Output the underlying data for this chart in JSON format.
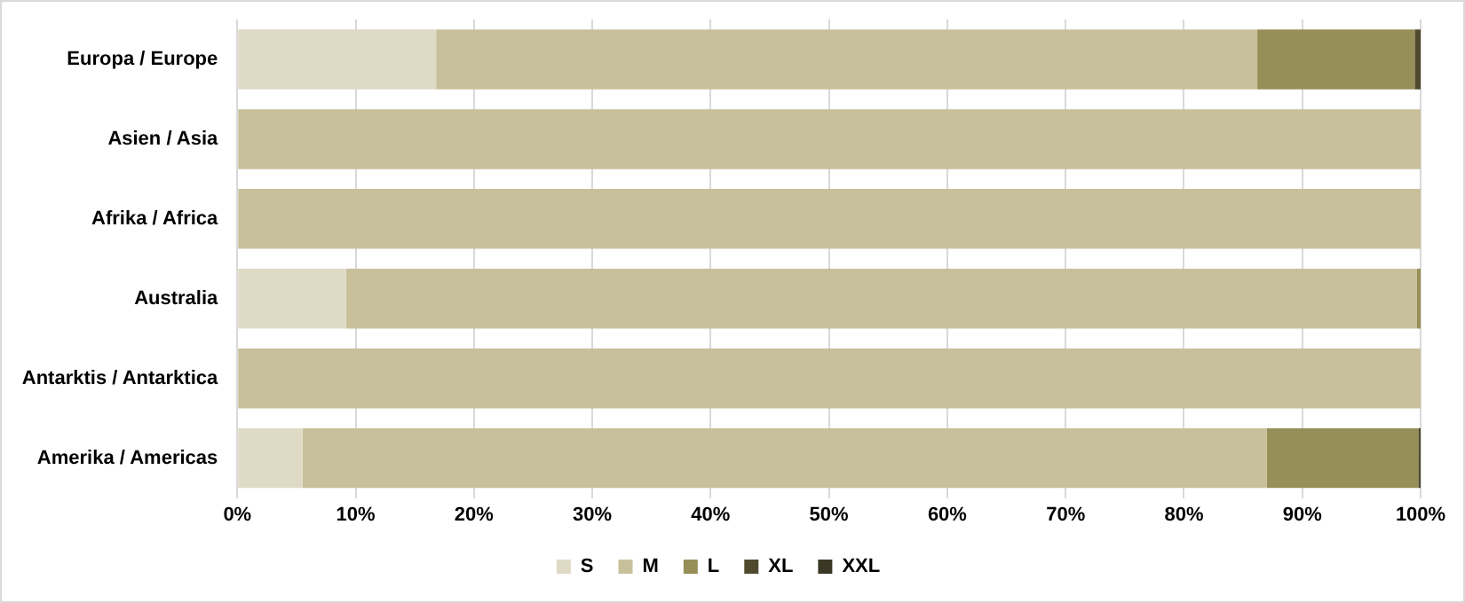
{
  "chart_data": {
    "type": "bar",
    "orientation": "horizontal",
    "stacked": true,
    "categories": [
      "Europa / Europe",
      "Asien / Asia",
      "Afrika / Africa",
      "Australia",
      "Antarktis / Antarktica",
      "Amerika / Americas"
    ],
    "series": [
      {
        "name": "S",
        "color": "#dfdac6",
        "values": [
          16.8,
          0,
          0,
          9.2,
          0,
          5.5
        ]
      },
      {
        "name": "M",
        "color": "#c8c09a",
        "values": [
          69.4,
          100,
          100,
          90.5,
          100,
          81.5
        ]
      },
      {
        "name": "L",
        "color": "#978f58",
        "values": [
          13.3,
          0,
          0,
          0.3,
          0,
          12.8
        ]
      },
      {
        "name": "XL",
        "color": "#4f4a2e",
        "values": [
          0.5,
          0,
          0,
          0,
          0,
          0.2
        ]
      },
      {
        "name": "XXL",
        "color": "#3a3724",
        "values": [
          0,
          0,
          0,
          0,
          0,
          0
        ]
      }
    ],
    "xlim": [
      0,
      100
    ],
    "xticks": [
      {
        "value": 0,
        "label": "0%"
      },
      {
        "value": 10,
        "label": "10%"
      },
      {
        "value": 20,
        "label": "20%"
      },
      {
        "value": 30,
        "label": "30%"
      },
      {
        "value": 40,
        "label": "40%"
      },
      {
        "value": 50,
        "label": "50%"
      },
      {
        "value": 60,
        "label": "60%"
      },
      {
        "value": 70,
        "label": "70%"
      },
      {
        "value": 80,
        "label": "80%"
      },
      {
        "value": 90,
        "label": "90%"
      },
      {
        "value": 100,
        "label": "100%"
      }
    ],
    "grid": "x",
    "legend": "bottom"
  }
}
